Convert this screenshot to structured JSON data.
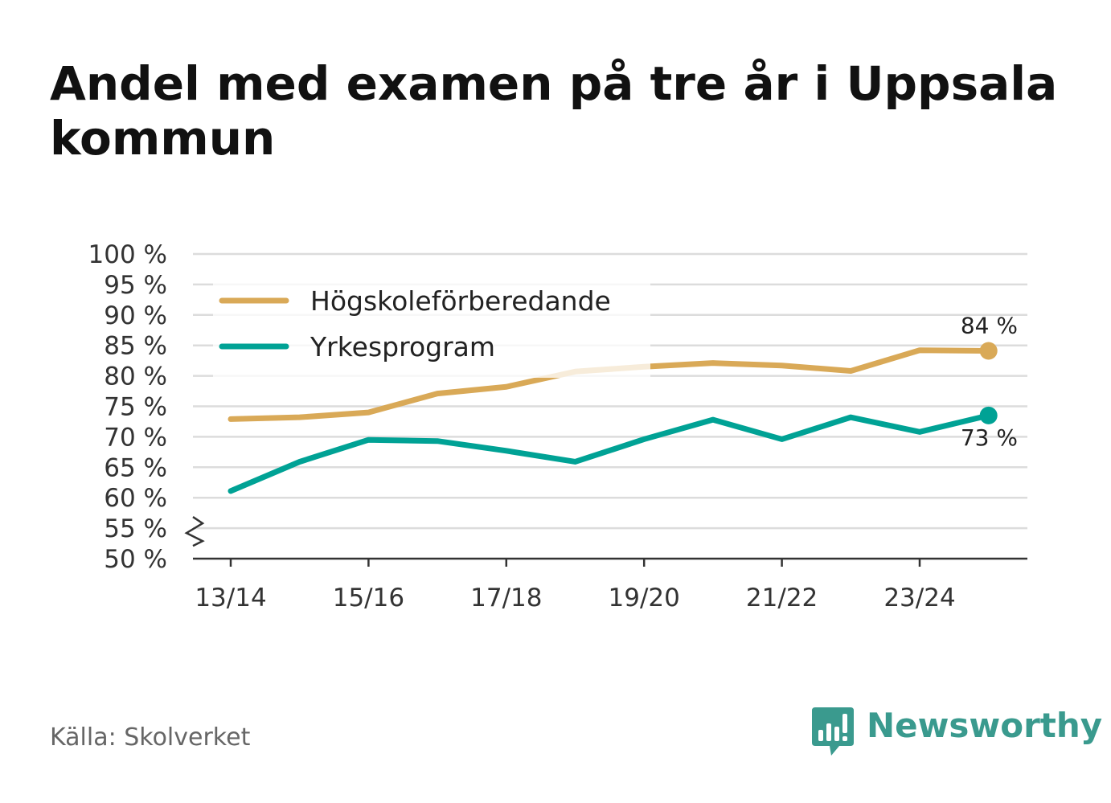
{
  "title": "Andel med examen på tre år i Uppsala kommun",
  "source": "Källa: Skolverket",
  "brand": {
    "name": "Newsworthy",
    "icon": "newsworthy-logo-icon",
    "color": "#3a9a8e"
  },
  "colors": {
    "series1": "#d9a957",
    "series2": "#00a295",
    "grid": "#dcdcdc",
    "axis": "#333333"
  },
  "chart_data": {
    "type": "line",
    "title": "Andel med examen på tre år i Uppsala kommun",
    "xlabel": "",
    "ylabel": "",
    "ylim": [
      50,
      100
    ],
    "axis_break": "55 %",
    "categories": [
      "13/14",
      "14/15",
      "15/16",
      "16/17",
      "17/18",
      "18/19",
      "19/20",
      "20/21",
      "21/22",
      "22/23",
      "23/24",
      "24/25"
    ],
    "x_tick_labels": [
      "13/14",
      "15/16",
      "17/18",
      "19/20",
      "21/22",
      "23/24"
    ],
    "y_tick_labels": [
      "50 %",
      "55 %",
      "60 %",
      "65 %",
      "70 %",
      "75 %",
      "80 %",
      "85 %",
      "90 %",
      "95 %",
      "100 %"
    ],
    "series": [
      {
        "name": "Högskoleförberedande",
        "color": "#d9a957",
        "values": [
          72.9,
          73.2,
          74.0,
          77.1,
          78.2,
          80.7,
          81.5,
          82.1,
          81.7,
          80.8,
          84.2,
          84.1
        ],
        "end_label": "84 %"
      },
      {
        "name": "Yrkesprogram",
        "color": "#00a295",
        "values": [
          61.1,
          65.9,
          69.5,
          69.3,
          67.7,
          65.9,
          69.6,
          72.8,
          69.6,
          73.2,
          70.8,
          73.5
        ],
        "end_label": "73 %"
      }
    ],
    "legend": "top-left",
    "grid": true
  }
}
